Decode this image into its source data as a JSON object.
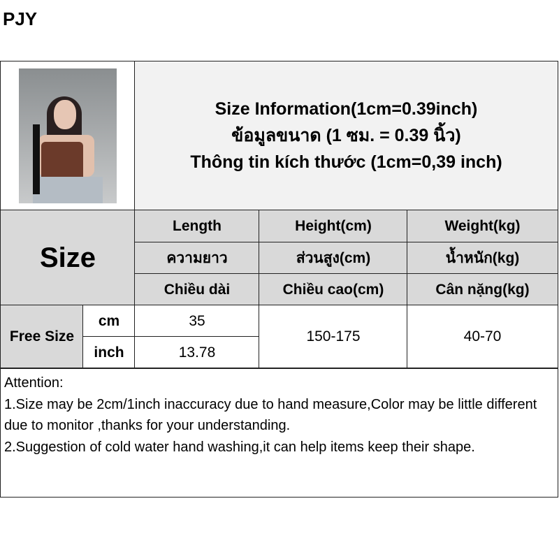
{
  "brand": "PJY",
  "title": [
    "Size Information(1cm=0.39inch)",
    "ข้อมูลขนาด (1 ซม. = 0.39 นิ้ว)",
    "Thông tin kích thước (1cm=0,39 inch)"
  ],
  "size_label": "Size",
  "headers": [
    [
      "Length",
      "ความยาว",
      "Chiều dài"
    ],
    [
      "Height(cm)",
      "ส่วนสูง(cm)",
      "Chiều cao(cm)"
    ],
    [
      "Weight(kg)",
      "น้ำหนัก(kg)",
      "Cân nặng(kg)"
    ]
  ],
  "row": {
    "label": "Free Size",
    "units": [
      "cm",
      "inch"
    ],
    "length": [
      "35",
      "13.78"
    ],
    "height": "150-175",
    "weight": "40-70"
  },
  "attention": [
    "Attention:",
    "1.Size may be 2cm/1inch inaccuracy due to hand measure,Color may be little different due to monitor ,thanks for your understanding.",
    "2.Suggestion of cold water hand washing,it can help items keep their shape."
  ]
}
